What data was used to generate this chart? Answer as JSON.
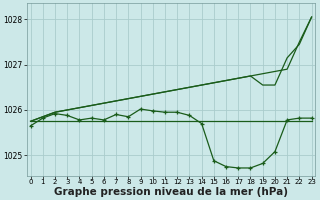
{
  "bg_color": "#cce8e8",
  "grid_color": "#aacccc",
  "line_color": "#1a5c1a",
  "xlabel": "Graphe pression niveau de la mer (hPa)",
  "xlabel_fontsize": 7.5,
  "yticks": [
    1025,
    1026,
    1027,
    1028
  ],
  "xticks": [
    0,
    1,
    2,
    3,
    4,
    5,
    6,
    7,
    8,
    9,
    10,
    11,
    12,
    13,
    14,
    15,
    16,
    17,
    18,
    19,
    20,
    21,
    22,
    23
  ],
  "ylim": [
    1024.55,
    1028.35
  ],
  "xlim": [
    -0.3,
    23.3
  ],
  "series": [
    {
      "y": [
        1025.75,
        1025.75,
        1025.75,
        1025.75,
        1025.75,
        1025.75,
        1025.75,
        1025.75,
        1025.75,
        1025.75,
        1025.75,
        1025.75,
        1025.75,
        1025.75,
        1025.75,
        1025.75,
        1025.75,
        1025.75,
        1025.75,
        1025.75,
        1025.75,
        1025.75,
        1025.75,
        1025.75
      ],
      "markers": false,
      "lw": 0.9
    },
    {
      "y": [
        1025.75,
        1025.85,
        1025.95,
        1026.0,
        1026.05,
        1026.1,
        1026.15,
        1026.2,
        1026.25,
        1026.3,
        1026.35,
        1026.4,
        1026.45,
        1026.5,
        1026.55,
        1026.6,
        1026.65,
        1026.7,
        1026.75,
        1026.8,
        1026.85,
        1026.9,
        1027.5,
        1028.05
      ],
      "markers": false,
      "lw": 0.9
    },
    {
      "y": [
        1025.75,
        1025.85,
        1025.95,
        1026.0,
        1026.05,
        1026.1,
        1026.15,
        1026.2,
        1026.25,
        1026.3,
        1026.35,
        1026.4,
        1026.45,
        1026.5,
        1026.55,
        1026.6,
        1026.65,
        1026.7,
        1026.75,
        1026.55,
        1026.55,
        1027.15,
        1027.45,
        1028.05
      ],
      "markers": false,
      "lw": 0.9
    },
    {
      "y": [
        1025.65,
        1025.82,
        1025.92,
        1025.88,
        1025.78,
        1025.82,
        1025.78,
        1025.9,
        1025.85,
        1026.02,
        1025.98,
        1025.95,
        1025.95,
        1025.88,
        1025.7,
        1024.88,
        1024.75,
        1024.72,
        1024.72,
        1024.82,
        1025.08,
        1025.78,
        1025.82,
        1025.82
      ],
      "markers": true,
      "lw": 0.9
    }
  ]
}
